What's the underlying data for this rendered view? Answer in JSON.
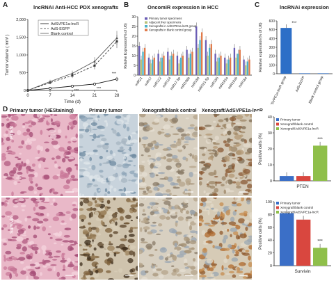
{
  "panels": {
    "A": {
      "letter": "A",
      "title": "lncRNAi Anti-HCC PDX xenografts"
    },
    "B": {
      "letter": "B",
      "title": "OncomiR expression in HCC"
    },
    "C": {
      "letter": "C",
      "title": "lncRNAi expression"
    },
    "D": {
      "letter": "D"
    }
  },
  "chart_data": [
    {
      "id": "A",
      "type": "line",
      "xlabel": "Time (d)",
      "ylabel": "Tumor volume ( mm³ )",
      "x": [
        0,
        7,
        14,
        21,
        28
      ],
      "x_ticks": [
        "0",
        "7",
        "14",
        "21",
        "28"
      ],
      "y_ticks": [
        "0",
        "500",
        "1,000",
        "1,500",
        "2,000"
      ],
      "ylim": [
        0,
        2000
      ],
      "xlim": [
        0,
        28
      ],
      "series": [
        {
          "name": "AdSVPE1a-lncR",
          "values": [
            0,
            60,
            120,
            180,
            320
          ],
          "color": "#111111",
          "dash": "none",
          "marker": "circle"
        },
        {
          "name": "AdS-EGFP",
          "values": [
            0,
            220,
            420,
            700,
            1380
          ],
          "color": "#333333",
          "dash": "3,2",
          "marker": "square"
        },
        {
          "name": "Blank control",
          "values": [
            0,
            250,
            480,
            820,
            1480
          ],
          "color": "#555555",
          "dash": "none",
          "marker": "triangle"
        }
      ],
      "annotations": [
        "***",
        "***",
        "***"
      ],
      "legend": "top-left"
    },
    {
      "id": "B",
      "type": "bar",
      "ylabel": "Relative Expression(% of U6)",
      "categories": [
        "miR21",
        "miR17",
        "miR122",
        "miR124",
        "miR17-5p",
        "miR106b",
        "miR186",
        "miR221-5p",
        "miR155",
        "miR181a",
        "miR181b",
        "miR184"
      ],
      "ylim": [
        0,
        30
      ],
      "y_ticks": [
        "0",
        "5",
        "10",
        "15",
        "20",
        "25",
        "30"
      ],
      "series": [
        {
          "name": "Primary tumor specimens",
          "values": [
            15,
            9,
            11,
            12,
            10,
            13,
            25,
            18,
            11,
            9,
            14,
            8
          ],
          "color": "#6a5db5"
        },
        {
          "name": "Adjacent liver specimens",
          "values": [
            8,
            6,
            7,
            8,
            6,
            9,
            14,
            10,
            7,
            6,
            9,
            5
          ],
          "color": "#b9c27a"
        },
        {
          "name": "Xenografts in AdSVPE1a-lncR group",
          "values": [
            12,
            8,
            9,
            10,
            9,
            11,
            18,
            14,
            9,
            8,
            11,
            7
          ],
          "color": "#4bb3c8"
        },
        {
          "name": "Xenografts in blank control group",
          "values": [
            14,
            9,
            10,
            11,
            10,
            12,
            22,
            16,
            10,
            9,
            13,
            8
          ],
          "color": "#e07a4a"
        }
      ],
      "legend": "top-left"
    },
    {
      "id": "C",
      "type": "bar",
      "ylabel": "Relative expression(% of U6)",
      "categories": [
        "AdSVPE1a-lncR group",
        "AdS-EGFP",
        "Blank control group"
      ],
      "values": [
        520,
        5,
        5
      ],
      "ylim": [
        0,
        600
      ],
      "y_ticks": [
        "0",
        "100",
        "200",
        "300",
        "400",
        "500",
        "600"
      ],
      "annotation": "***",
      "color": "#2d6fc7"
    },
    {
      "id": "D-PTEN",
      "type": "bar",
      "ylabel": "Positive cells (%)",
      "xlabel": "PTEN",
      "categories": [
        "Primary tumor",
        "Xenograft/blank control",
        "Xenograft/AdSVPE1a-lncR"
      ],
      "values": [
        3,
        3,
        22
      ],
      "ylim": [
        0,
        40
      ],
      "y_ticks": [
        "0",
        "10",
        "20",
        "30",
        "40"
      ],
      "colors": [
        "#3b6fc7",
        "#d9473f",
        "#8fbf4a"
      ],
      "annotation": "***",
      "legend": "top-left"
    },
    {
      "id": "D-Survivin",
      "type": "bar",
      "ylabel": "Positive cells (%)",
      "xlabel": "Survivin",
      "categories": [
        "Primary tumor",
        "Xenograft/blank control",
        "Xenograft/AdSVPE1a-lncR"
      ],
      "values": [
        82,
        72,
        28
      ],
      "ylim": [
        0,
        100
      ],
      "y_ticks": [
        "0",
        "20",
        "40",
        "60",
        "80",
        "100"
      ],
      "colors": [
        "#3b6fc7",
        "#d9473f",
        "#8fbf4a"
      ],
      "annotation": "***",
      "legend": "top-right"
    }
  ],
  "histology": {
    "column_headers": [
      "Primary tumor (HEStaining)",
      "Primary tumor",
      "Xenograft/blank control",
      "Xenograft/AdSVPE1a-lncR"
    ],
    "row_labels": [
      "PTEN",
      "Survivin"
    ],
    "tile_styles": [
      "he-stain",
      "ihc-blue",
      "ihc-brown",
      "ihc-brown-dense"
    ]
  }
}
